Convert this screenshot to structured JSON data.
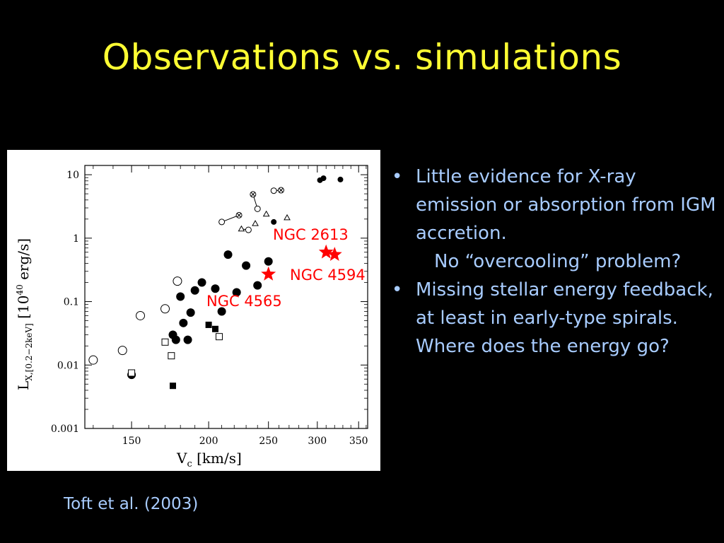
{
  "slide": {
    "title": "Observations vs. simulations",
    "bullets": [
      "Little evidence for X-ray emission or absorption from IGM accretion.",
      "Missing stellar energy feedback, at least in early-type spirals.  Where does the energy go?"
    ],
    "sub_bullet": "No “overcooling” problem?",
    "caption": "Toft et al. (2003)",
    "colors": {
      "title": "#ffff33",
      "text": "#a8ccff",
      "annotation": "#ff0000",
      "background": "#000000"
    }
  },
  "chart_data": {
    "type": "scatter",
    "xlabel": "V_c [km/s]",
    "ylabel": "L_X,[0.2–2keV] [10^40 erg/s]",
    "xscale": "log",
    "yscale": "log",
    "xlim": [
      126,
      362
    ],
    "ylim": [
      0.001,
      14
    ],
    "x_ticks": [
      "150",
      "200",
      "250",
      "300",
      "350"
    ],
    "y_ticks": [
      "10",
      "1",
      "0.1",
      "0.01",
      "0.001"
    ],
    "annotations": [
      "NGC 2613",
      "NGC 4594",
      "NGC 4565"
    ],
    "series": [
      {
        "marker": "open-circle",
        "points": [
          [
            130,
            0.012
          ],
          [
            145,
            0.017
          ],
          [
            155,
            0.06
          ],
          [
            170,
            0.077
          ],
          [
            178,
            0.21
          ]
        ]
      },
      {
        "marker": "filled-circle",
        "points": [
          [
            150,
            0.007
          ],
          [
            175,
            0.03
          ],
          [
            177,
            0.025
          ],
          [
            180,
            0.12
          ],
          [
            182,
            0.046
          ],
          [
            185,
            0.025
          ],
          [
            187,
            0.067
          ],
          [
            190,
            0.15
          ],
          [
            195,
            0.2
          ],
          [
            205,
            0.16
          ],
          [
            210,
            0.07
          ],
          [
            215,
            0.55
          ],
          [
            222,
            0.14
          ],
          [
            230,
            0.37
          ],
          [
            240,
            0.18
          ],
          [
            250,
            0.43
          ]
        ]
      },
      {
        "marker": "filled-square",
        "points": [
          [
            175,
            0.0047
          ],
          [
            200,
            0.043
          ],
          [
            205,
            0.037
          ]
        ]
      },
      {
        "marker": "open-square",
        "points": [
          [
            150,
            0.0075
          ],
          [
            170,
            0.023
          ],
          [
            174,
            0.014
          ],
          [
            208,
            0.028
          ]
        ]
      },
      {
        "marker": "open-circle-small",
        "points": [
          [
            210,
            1.8
          ],
          [
            232,
            1.35
          ],
          [
            240,
            2.9
          ],
          [
            255,
            5.6
          ]
        ]
      },
      {
        "marker": "circle-cross",
        "points": [
          [
            224,
            2.3
          ],
          [
            236,
            4.9
          ],
          [
            262,
            5.7
          ]
        ]
      },
      {
        "marker": "open-triangle",
        "points": [
          [
            226,
            1.4
          ],
          [
            238,
            1.7
          ],
          [
            248,
            2.4
          ],
          [
            268,
            2.1
          ]
        ]
      },
      {
        "marker": "filled-circle-small",
        "points": [
          [
            255,
            1.8
          ],
          [
            303,
            8.2
          ],
          [
            307,
            8.8
          ],
          [
            327,
            8.4
          ]
        ]
      },
      {
        "marker": "star",
        "points": [
          [
            250,
            0.27
          ],
          [
            310,
            0.6
          ],
          [
            320,
            0.55
          ]
        ]
      }
    ]
  }
}
